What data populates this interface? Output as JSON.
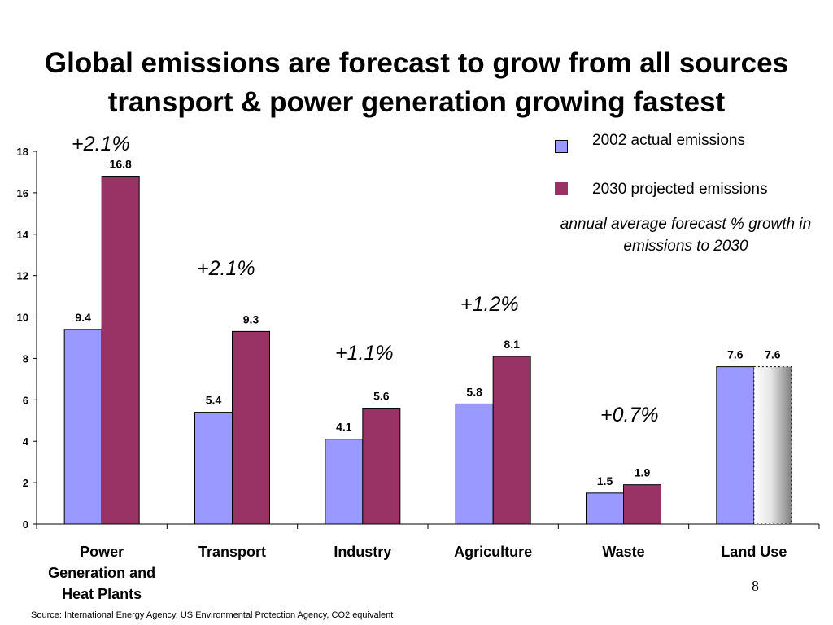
{
  "title": {
    "line1": "Global emissions are forecast to grow from all sources",
    "line2": "transport & power generation growing fastest"
  },
  "legend": {
    "items": [
      {
        "label": "2002 actual emissions",
        "color": "#9999ff"
      },
      {
        "label": "2030 projected emissions",
        "color": "#993366"
      }
    ],
    "note": "annual average forecast % growth in emissions to 2030"
  },
  "growth_labels": [
    "+2.1%",
    "+2.1%",
    "+1.1%",
    "+1.2%",
    "+0.7%"
  ],
  "page_number": "8",
  "source": "Source: International Energy Agency, US Environmental Protection Agency, CO2 equivalent",
  "chart_data": {
    "type": "bar",
    "categories": [
      "Power Generation and Heat Plants",
      "Transport",
      "Industry",
      "Agriculture",
      "Waste",
      "Land Use"
    ],
    "category_lines": [
      [
        "Power",
        "Generation and",
        "Heat Plants"
      ],
      [
        "Transport"
      ],
      [
        "Industry"
      ],
      [
        "Agriculture"
      ],
      [
        "Waste"
      ],
      [
        "Land Use"
      ]
    ],
    "series": [
      {
        "name": "2002 actual emissions",
        "values": [
          9.4,
          5.4,
          4.1,
          5.8,
          1.5,
          7.6
        ],
        "labels": [
          "9.4",
          "5.4",
          "4.1",
          "5.8",
          "1.5",
          "7.6"
        ]
      },
      {
        "name": "2030 projected emissions",
        "values": [
          16.8,
          9.3,
          5.6,
          8.1,
          1.9,
          7.6
        ],
        "labels": [
          "16.8",
          "9.3",
          "5.6",
          "8.1",
          "1.9",
          "7.6"
        ]
      }
    ],
    "ylim": [
      0,
      18
    ],
    "yticks": [
      "0",
      "2",
      "4",
      "6",
      "8",
      "10",
      "12",
      "14",
      "16",
      "18"
    ],
    "grid": false,
    "land_use_2030_style": "dotted outline with grey gradient"
  }
}
